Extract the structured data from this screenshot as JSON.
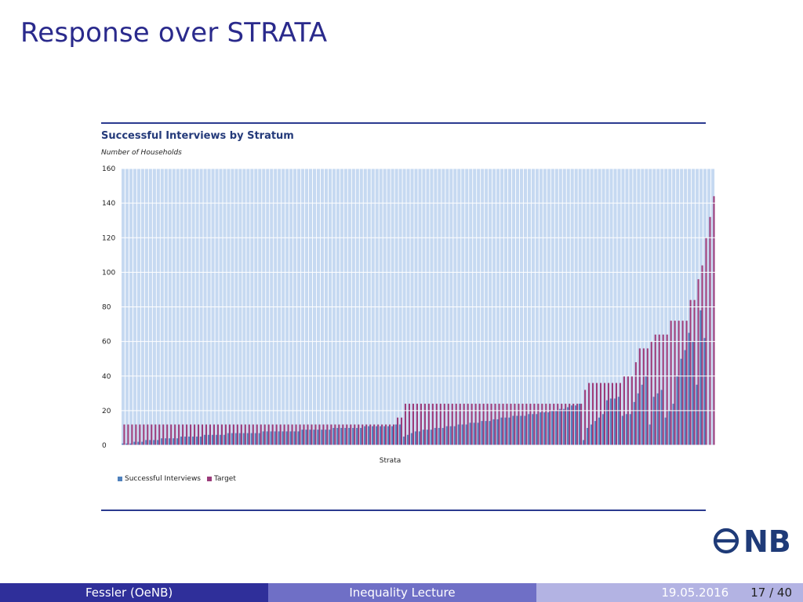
{
  "slide": {
    "title": "Response over STRATA"
  },
  "footer": {
    "author": "Fessler  (OeNB)",
    "lecture": "Inequality Lecture",
    "date": "19.05.2016",
    "page": "17 / 40"
  },
  "colors": {
    "title": "#2a2a8c",
    "plot_background": "#c6d9f1",
    "successful": "#4f81bd",
    "target": "#9b3b7a",
    "rule": "#2b3a8f",
    "logo": "#1f3b78"
  },
  "logo": {
    "text": "ONB"
  },
  "chart_data": {
    "type": "bar",
    "title": "Successful Interviews by Stratum",
    "subtitle": "Number of Households",
    "xlabel": "Strata",
    "ylabel": "",
    "ylim": [
      0,
      160
    ],
    "yticks": [
      0,
      20,
      40,
      60,
      80,
      100,
      120,
      140,
      160
    ],
    "grid": true,
    "legend_position": "bottom-left",
    "series": [
      {
        "name": "Successful Interviews",
        "values": [
          1,
          1,
          1,
          2,
          2,
          2,
          3,
          3,
          3,
          3,
          4,
          4,
          4,
          4,
          4,
          5,
          5,
          5,
          5,
          5,
          5,
          6,
          6,
          6,
          6,
          6,
          6,
          7,
          7,
          7,
          7,
          7,
          7,
          7,
          7,
          7,
          8,
          8,
          8,
          8,
          8,
          8,
          8,
          8,
          8,
          8,
          9,
          9,
          9,
          9,
          9,
          9,
          9,
          9,
          10,
          10,
          10,
          10,
          10,
          10,
          10,
          10,
          11,
          11,
          11,
          11,
          11,
          11,
          11,
          11,
          12,
          12,
          5,
          6,
          7,
          8,
          8,
          9,
          9,
          9,
          10,
          10,
          10,
          11,
          11,
          11,
          12,
          12,
          12,
          13,
          13,
          13,
          14,
          14,
          14,
          15,
          15,
          16,
          16,
          16,
          17,
          17,
          17,
          17,
          18,
          18,
          18,
          19,
          19,
          19,
          20,
          20,
          21,
          21,
          22,
          23,
          23,
          24,
          3,
          10,
          12,
          14,
          16,
          18,
          26,
          27,
          27,
          28,
          17,
          18,
          18,
          25,
          30,
          35,
          40,
          12,
          28,
          30,
          32,
          16,
          20,
          24,
          40,
          50,
          55,
          65,
          60,
          35,
          78,
          62
        ]
      },
      {
        "name": "Target",
        "values": [
          12,
          12,
          12,
          12,
          12,
          12,
          12,
          12,
          12,
          12,
          12,
          12,
          12,
          12,
          12,
          12,
          12,
          12,
          12,
          12,
          12,
          12,
          12,
          12,
          12,
          12,
          12,
          12,
          12,
          12,
          12,
          12,
          12,
          12,
          12,
          12,
          12,
          12,
          12,
          12,
          12,
          12,
          12,
          12,
          12,
          12,
          12,
          12,
          12,
          12,
          12,
          12,
          12,
          12,
          12,
          12,
          12,
          12,
          12,
          12,
          12,
          12,
          12,
          12,
          12,
          12,
          12,
          12,
          12,
          12,
          16,
          16,
          24,
          24,
          24,
          24,
          24,
          24,
          24,
          24,
          24,
          24,
          24,
          24,
          24,
          24,
          24,
          24,
          24,
          24,
          24,
          24,
          24,
          24,
          24,
          24,
          24,
          24,
          24,
          24,
          24,
          24,
          24,
          24,
          24,
          24,
          24,
          24,
          24,
          24,
          24,
          24,
          24,
          24,
          24,
          24,
          24,
          24,
          32,
          36,
          36,
          36,
          36,
          36,
          36,
          36,
          36,
          36,
          40,
          40,
          40,
          48,
          56,
          56,
          56,
          60,
          64,
          64,
          64,
          64,
          72,
          72,
          72,
          72,
          72,
          84,
          84,
          96,
          104,
          120,
          132,
          144
        ]
      }
    ]
  }
}
